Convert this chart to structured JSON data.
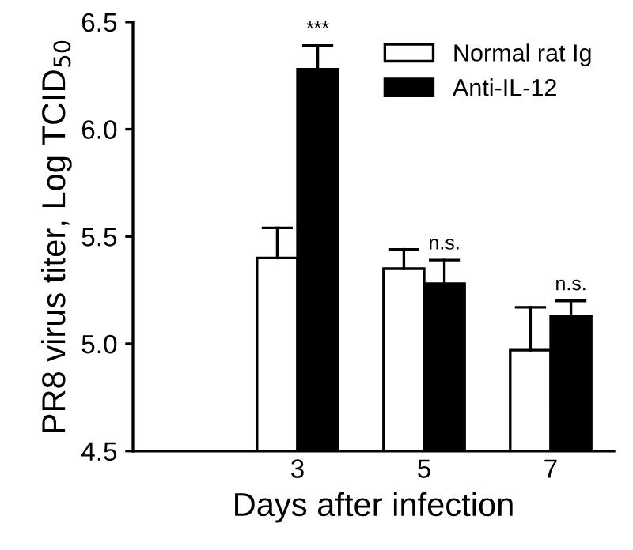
{
  "chart_data": {
    "type": "bar",
    "xlabel": "Days after infection",
    "ylabel": "PR8 virus titer, Log TCID$_{50}$",
    "categories": [
      "3",
      "5",
      "7"
    ],
    "series": [
      {
        "name": "Normal rat Ig",
        "color": "#ffffff",
        "values": [
          5.4,
          5.35,
          4.97
        ],
        "errors": [
          [
            5.4,
            5.54
          ],
          [
            5.35,
            5.44
          ],
          [
            4.97,
            5.17
          ]
        ]
      },
      {
        "name": "Anti-IL-12",
        "color": "#000000",
        "values": [
          6.28,
          5.28,
          5.13
        ],
        "errors": [
          [
            6.28,
            6.39
          ],
          [
            5.28,
            5.39
          ],
          [
            5.13,
            5.2
          ]
        ]
      }
    ],
    "annotations": [
      {
        "text": "***",
        "x": "3",
        "y": 6.39
      },
      {
        "text": "n.s.",
        "x": "5",
        "y": 5.39
      },
      {
        "text": "n.s.",
        "x": "7",
        "y": 5.2
      }
    ],
    "ylim": [
      4.5,
      6.5
    ],
    "yticks": [
      {
        "value": 4.5,
        "label": "4.5"
      },
      {
        "value": 5.0,
        "label": "5.0"
      },
      {
        "value": 5.5,
        "label": "5.5"
      },
      {
        "value": 6.0,
        "label": "6.0"
      },
      {
        "value": 6.5,
        "label": "6.5"
      }
    ],
    "grid": false,
    "legend": "top right"
  }
}
